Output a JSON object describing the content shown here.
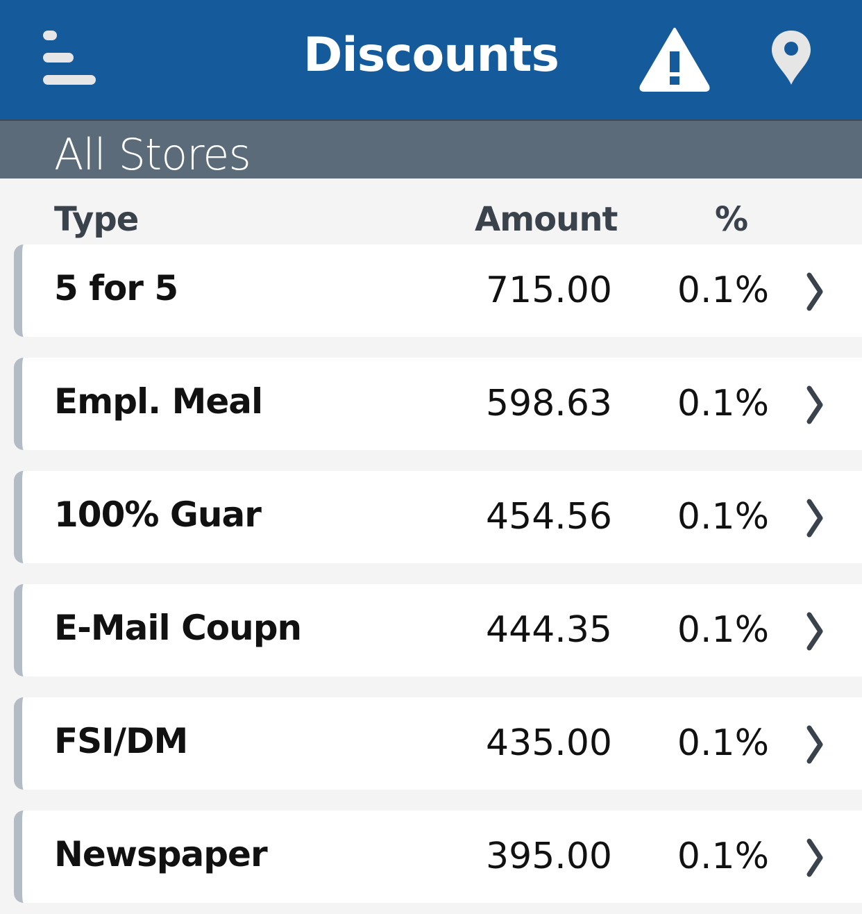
{
  "header": {
    "title": "Discounts",
    "menu_icon": "menu-icon",
    "alert_icon": "warning-icon",
    "location_icon": "map-pin-icon",
    "color": "#155b9c"
  },
  "subheader": {
    "label": "All Stores"
  },
  "columns": {
    "type": "Type",
    "amount": "Amount",
    "percent": "%"
  },
  "rows": [
    {
      "type": "5 for 5",
      "amount": "715.00",
      "percent": "0.1%"
    },
    {
      "type": "Empl. Meal",
      "amount": "598.63",
      "percent": "0.1%"
    },
    {
      "type": "100% Guar",
      "amount": "454.56",
      "percent": "0.1%"
    },
    {
      "type": "E-Mail Coupn",
      "amount": "444.35",
      "percent": "0.1%"
    },
    {
      "type": "FSI/DM",
      "amount": "435.00",
      "percent": "0.1%"
    },
    {
      "type": "Newspaper",
      "amount": "395.00",
      "percent": "0.1%"
    }
  ]
}
